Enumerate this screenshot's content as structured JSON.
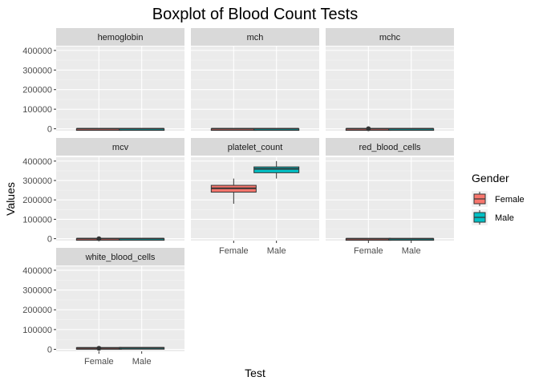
{
  "chart_data": {
    "type": "boxplot",
    "title": "Boxplot of Blood Count Tests",
    "xlabel": "Test",
    "ylabel": "Values",
    "ylim": [
      -10000,
      420000
    ],
    "y_ticks": [
      0,
      100000,
      200000,
      300000,
      400000
    ],
    "categories": [
      "Female",
      "Male"
    ],
    "legend": {
      "title": "Gender",
      "placement": "right",
      "entries": [
        {
          "name": "Female",
          "color": "#F8766D"
        },
        {
          "name": "Male",
          "color": "#00BFC4"
        }
      ]
    },
    "facets": [
      {
        "label": "hemoglobin",
        "boxes": [
          {
            "group": "Female",
            "whisker_low": 12,
            "q1": 13,
            "median": 14,
            "q3": 15,
            "whisker_high": 16,
            "outliers": []
          },
          {
            "group": "Male",
            "whisker_low": 13,
            "q1": 14,
            "median": 15,
            "q3": 16,
            "whisker_high": 17,
            "outliers": []
          }
        ]
      },
      {
        "label": "mch",
        "boxes": [
          {
            "group": "Female",
            "whisker_low": 26,
            "q1": 28,
            "median": 29,
            "q3": 30,
            "whisker_high": 32,
            "outliers": []
          },
          {
            "group": "Male",
            "whisker_low": 26,
            "q1": 28,
            "median": 29,
            "q3": 30,
            "whisker_high": 32,
            "outliers": []
          }
        ]
      },
      {
        "label": "mchc",
        "boxes": [
          {
            "group": "Female",
            "whisker_low": 32,
            "q1": 33,
            "median": 34,
            "q3": 35,
            "whisker_high": 36,
            "outliers": [
              0
            ]
          },
          {
            "group": "Male",
            "whisker_low": 32,
            "q1": 33,
            "median": 34,
            "q3": 35,
            "whisker_high": 36,
            "outliers": []
          }
        ]
      },
      {
        "label": "mcv",
        "boxes": [
          {
            "group": "Female",
            "whisker_low": 80,
            "q1": 85,
            "median": 90,
            "q3": 95,
            "whisker_high": 100,
            "outliers": [
              0
            ]
          },
          {
            "group": "Male",
            "whisker_low": 80,
            "q1": 85,
            "median": 90,
            "q3": 95,
            "whisker_high": 100,
            "outliers": []
          }
        ]
      },
      {
        "label": "platelet_count",
        "boxes": [
          {
            "group": "Female",
            "whisker_low": 180000,
            "q1": 240000,
            "median": 260000,
            "q3": 275000,
            "whisker_high": 310000,
            "outliers": []
          },
          {
            "group": "Male",
            "whisker_low": 310000,
            "q1": 340000,
            "median": 360000,
            "q3": 370000,
            "whisker_high": 400000,
            "outliers": []
          }
        ]
      },
      {
        "label": "red_blood_cells",
        "boxes": [
          {
            "group": "Female",
            "whisker_low": 4,
            "q1": 4.3,
            "median": 4.6,
            "q3": 4.9,
            "whisker_high": 5.2,
            "outliers": []
          },
          {
            "group": "Male",
            "whisker_low": 4.5,
            "q1": 4.8,
            "median": 5.1,
            "q3": 5.4,
            "whisker_high": 5.8,
            "outliers": []
          }
        ]
      },
      {
        "label": "white_blood_cells",
        "boxes": [
          {
            "group": "Female",
            "whisker_low": 4000,
            "q1": 5500,
            "median": 7000,
            "q3": 8500,
            "whisker_high": 10000,
            "outliers": [
              5000
            ]
          },
          {
            "group": "Male",
            "whisker_low": 5000,
            "q1": 6500,
            "median": 7500,
            "q3": 9000,
            "whisker_high": 11000,
            "outliers": []
          }
        ]
      }
    ]
  }
}
